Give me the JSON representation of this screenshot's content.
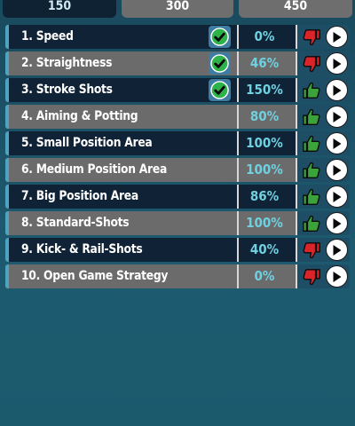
{
  "tabs": [
    {
      "label": "150",
      "active": true
    },
    {
      "label": "300",
      "active": false
    },
    {
      "label": "450",
      "active": false
    }
  ],
  "rows": [
    {
      "label": "1. Speed",
      "percent": "0%",
      "checked": true,
      "thumb": "thumbs-down-icon",
      "thumb_color": "#d9252a"
    },
    {
      "label": "2. Straightness",
      "percent": "46%",
      "checked": true,
      "thumb": "thumbs-down-icon",
      "thumb_color": "#d9252a"
    },
    {
      "label": "3. Stroke Shots",
      "percent": "150%",
      "checked": true,
      "thumb": "thumbs-up-icon",
      "thumb_color": "#3aa33a"
    },
    {
      "label": "4. Aiming & Potting",
      "percent": "80%",
      "checked": false,
      "thumb": "thumbs-up-icon",
      "thumb_color": "#3aa33a"
    },
    {
      "label": "5. Small Position Area",
      "percent": "100%",
      "checked": false,
      "thumb": "thumbs-up-icon",
      "thumb_color": "#3aa33a"
    },
    {
      "label": "6. Medium Position Area",
      "percent": "100%",
      "checked": false,
      "thumb": "thumbs-up-icon",
      "thumb_color": "#3aa33a"
    },
    {
      "label": "7. Big Position Area",
      "percent": "86%",
      "checked": false,
      "thumb": "thumbs-up-icon",
      "thumb_color": "#3aa33a"
    },
    {
      "label": "8. Standard-Shots",
      "percent": "100%",
      "checked": false,
      "thumb": "thumbs-up-icon",
      "thumb_color": "#3aa33a"
    },
    {
      "label": "9. Kick- & Rail-Shots",
      "percent": "40%",
      "checked": false,
      "thumb": "thumbs-down-icon",
      "thumb_color": "#d9252a"
    },
    {
      "label": "10. Open Game Strategy",
      "percent": "0%",
      "checked": false,
      "thumb": "thumbs-down-icon",
      "thumb_color": "#d9252a"
    }
  ],
  "colors": {
    "check_green": "#2db34a",
    "percent_text": "#6fd0e0",
    "accent": "#4da3c0"
  }
}
